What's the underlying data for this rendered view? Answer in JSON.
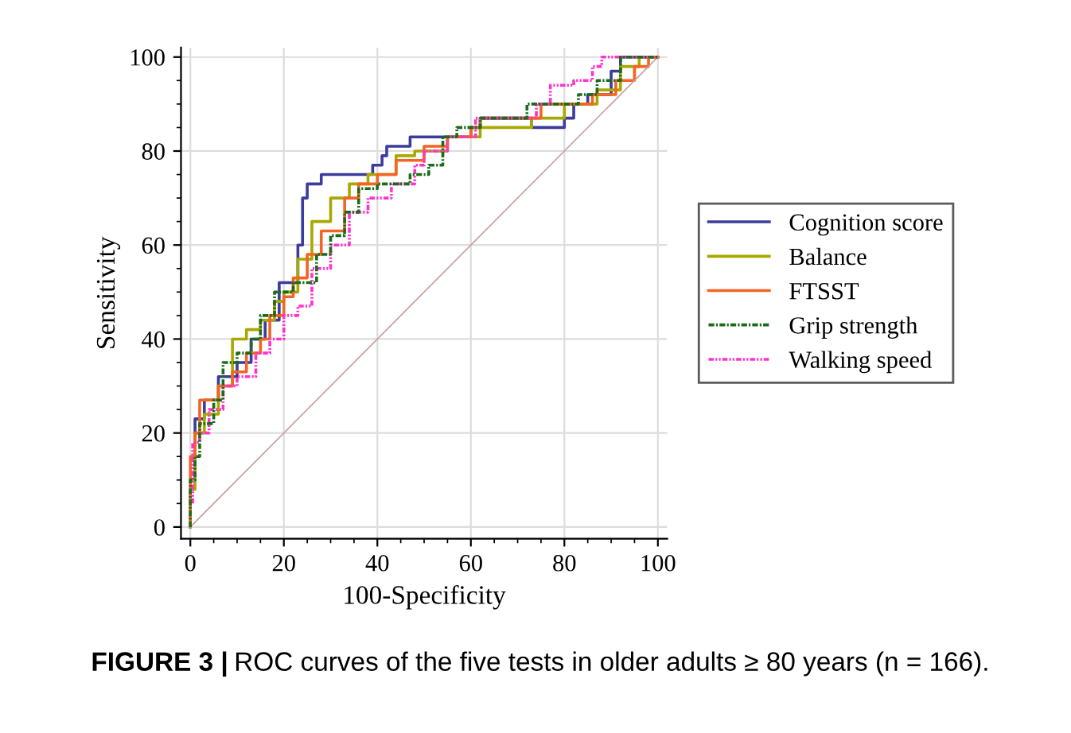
{
  "chart_data": {
    "type": "step",
    "xlabel": "100-Specificity",
    "ylabel": "Sensitivity",
    "xlim": [
      -2,
      102
    ],
    "ylim": [
      -2.5,
      102
    ],
    "xticks": [
      0,
      20,
      40,
      60,
      80,
      100
    ],
    "yticks": [
      0,
      20,
      40,
      60,
      80,
      100
    ],
    "grid": true,
    "legend": "right",
    "annotations": [
      "FIGURE 3 |",
      "ROC curves of the five tests in older adults ≥ 80 years (n = 166)."
    ],
    "series": [
      {
        "name": "Cognition score",
        "color": "#3c3c9c",
        "line_style": "solid",
        "x": [
          1,
          1,
          3,
          3,
          6,
          6,
          10,
          10,
          13,
          13,
          16,
          16,
          19,
          19,
          23,
          23,
          24,
          24,
          25,
          25,
          28,
          28,
          32,
          32,
          39,
          39,
          41,
          41,
          42,
          42,
          47,
          47,
          55,
          55,
          60,
          60,
          62,
          62,
          73,
          73,
          80,
          80,
          82,
          82,
          85,
          85,
          90,
          90,
          92,
          92,
          100
        ],
        "values": [
          10,
          23,
          23,
          27,
          27,
          32,
          32,
          35,
          35,
          40,
          40,
          44,
          44,
          52,
          52,
          60,
          60,
          70,
          70,
          73,
          73,
          75,
          75,
          75,
          75,
          77,
          77,
          79,
          79,
          81,
          81,
          83,
          83,
          83,
          83,
          85,
          85,
          87,
          87,
          85,
          85,
          87,
          87,
          90,
          90,
          92,
          92,
          97,
          97,
          100,
          100
        ]
      },
      {
        "name": "Balance",
        "color": "#a8a800",
        "line_style": "solid",
        "x": [
          0,
          0,
          1,
          1,
          3,
          3,
          6,
          6,
          9,
          9,
          12,
          12,
          15,
          15,
          18,
          18,
          20,
          20,
          23,
          23,
          26,
          26,
          30,
          30,
          34,
          34,
          38,
          38,
          44,
          44,
          48,
          48,
          55,
          55,
          62,
          62,
          73,
          73,
          80,
          80,
          87,
          87,
          92,
          92,
          96,
          96,
          100
        ],
        "values": [
          0,
          8,
          8,
          20,
          20,
          24,
          24,
          30,
          30,
          40,
          40,
          42,
          42,
          44,
          44,
          48,
          48,
          50,
          50,
          57,
          57,
          65,
          65,
          70,
          70,
          73,
          73,
          75,
          75,
          79,
          79,
          80,
          80,
          83,
          83,
          85,
          85,
          87,
          87,
          90,
          90,
          93,
          93,
          98,
          98,
          100,
          100
        ]
      },
      {
        "name": "FTSST",
        "color": "#f26522",
        "line_style": "solid",
        "x": [
          0,
          0,
          1,
          1,
          2,
          2,
          6,
          6,
          9,
          9,
          12,
          12,
          15,
          15,
          17,
          17,
          20,
          20,
          22,
          22,
          25,
          25,
          28,
          28,
          33,
          33,
          36,
          36,
          40,
          40,
          44,
          44,
          50,
          50,
          55,
          55,
          60,
          60,
          62,
          62,
          75,
          75,
          86,
          86,
          91,
          91,
          95,
          95,
          98,
          98,
          100
        ],
        "values": [
          0,
          15,
          15,
          20,
          20,
          27,
          27,
          30,
          30,
          33,
          33,
          37,
          37,
          40,
          40,
          45,
          45,
          49,
          49,
          53,
          53,
          58,
          58,
          63,
          63,
          70,
          70,
          73,
          73,
          75,
          75,
          78,
          78,
          81,
          81,
          83,
          83,
          85,
          85,
          87,
          87,
          90,
          90,
          92,
          92,
          95,
          95,
          98,
          98,
          100,
          100
        ]
      },
      {
        "name": "Grip strength",
        "color": "#1a6b1a",
        "line_style": "dashed",
        "x": [
          0,
          0,
          1,
          1,
          2,
          2,
          5,
          5,
          7,
          7,
          10,
          10,
          13,
          13,
          15,
          15,
          18,
          18,
          22,
          22,
          27,
          27,
          30,
          30,
          33,
          33,
          36,
          36,
          40,
          40,
          47,
          47,
          51,
          51,
          54,
          54,
          57,
          57,
          62,
          62,
          72,
          72,
          83,
          83,
          87,
          87,
          92,
          92,
          100
        ],
        "values": [
          0,
          10,
          10,
          15,
          15,
          22,
          22,
          27,
          27,
          35,
          35,
          37,
          37,
          40,
          40,
          45,
          45,
          50,
          50,
          52,
          52,
          58,
          58,
          62,
          62,
          67,
          67,
          72,
          72,
          73,
          73,
          75,
          75,
          77,
          77,
          83,
          83,
          85,
          85,
          87,
          87,
          90,
          90,
          92,
          92,
          95,
          95,
          100,
          100
        ]
      },
      {
        "name": "Walking speed",
        "color": "#ff33cc",
        "line_style": "dotted",
        "x": [
          0.5,
          0.5,
          2,
          2,
          4,
          4,
          7,
          7,
          10,
          10,
          14,
          14,
          17,
          17,
          20,
          20,
          23,
          23,
          26,
          26,
          30,
          30,
          34,
          34,
          38,
          38,
          43,
          43,
          48,
          48,
          50,
          50,
          55,
          55,
          61,
          61,
          74,
          74,
          77,
          77,
          82,
          82,
          86,
          86,
          88,
          88,
          100
        ],
        "values": [
          5,
          18,
          18,
          20,
          20,
          25,
          25,
          30,
          30,
          32,
          32,
          37,
          37,
          40,
          40,
          45,
          45,
          47,
          47,
          55,
          55,
          60,
          60,
          67,
          67,
          70,
          70,
          73,
          73,
          77,
          77,
          80,
          80,
          83,
          83,
          87,
          87,
          90,
          90,
          94,
          94,
          95,
          95,
          98,
          98,
          100,
          100
        ]
      },
      {
        "type": "line",
        "color": "#c8a0a0",
        "line_style": "solid",
        "x": [
          0,
          100
        ],
        "values": [
          0,
          100
        ]
      }
    ]
  }
}
